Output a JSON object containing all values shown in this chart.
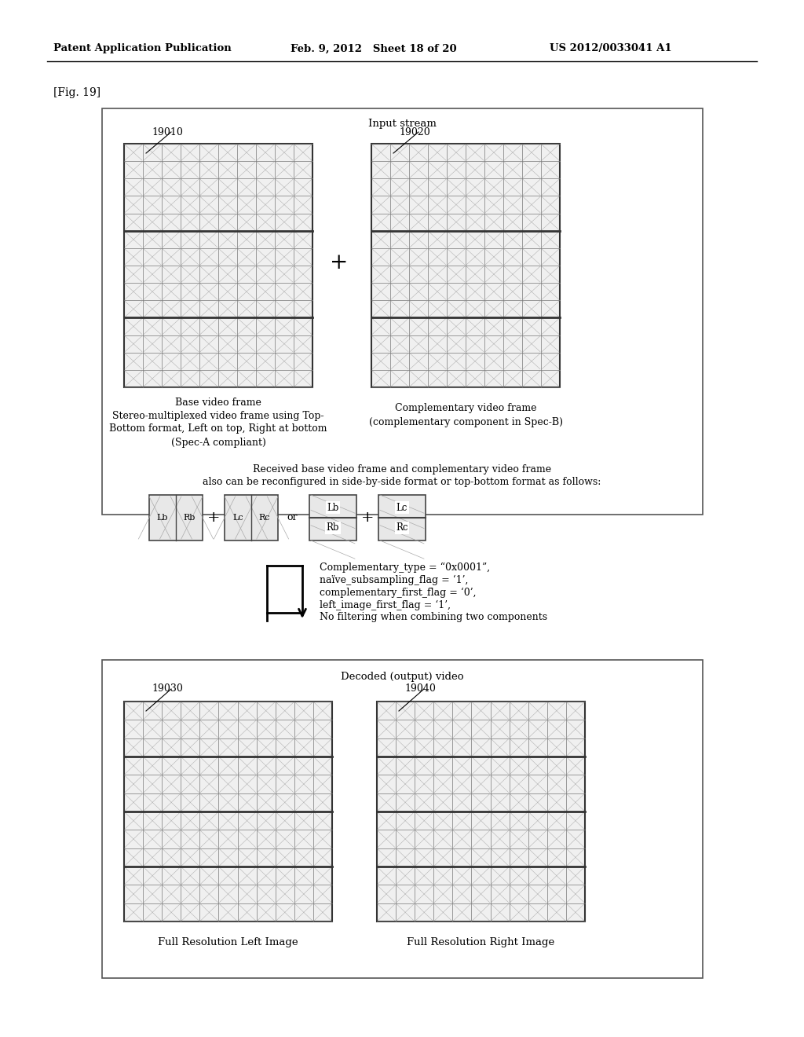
{
  "header_left": "Patent Application Publication",
  "header_mid": "Feb. 9, 2012   Sheet 18 of 20",
  "header_right": "US 2012/0033041 A1",
  "fig_label": "[Fig. 19]",
  "input_stream_label": "Input stream",
  "label_19010": "19010",
  "label_19020": "19020",
  "base_caption1": "Base video frame",
  "base_caption2": "Stereo-multiplexed video frame using Top-",
  "base_caption3": "Bottom format, Left on top, Right at bottom",
  "base_caption4": "(Spec-A compliant)",
  "comp_caption1": "Complementary video frame",
  "comp_caption2": "(complementary component in Spec-B)",
  "reconfig_line1": "Received base video frame and complementary video frame",
  "reconfig_line2": "also can be reconfigured in side-by-side format or top-bottom format as follows:",
  "arrow_text1": "Complementary_type = “0x0001”,",
  "arrow_text2": "naïve_subsampling_flag = ‘1’,",
  "arrow_text3": "complementary_first_flag = ‘0’,",
  "arrow_text4": "left_image_first_flag = ‘1’,",
  "arrow_text5": "No filtering when combining two components",
  "decoded_label": "Decoded (output) video",
  "label_19030": "19030",
  "label_19040": "19040",
  "left_caption": "Full Resolution Left Image",
  "right_caption": "Full Resolution Right Image",
  "bg_color": "#ffffff"
}
